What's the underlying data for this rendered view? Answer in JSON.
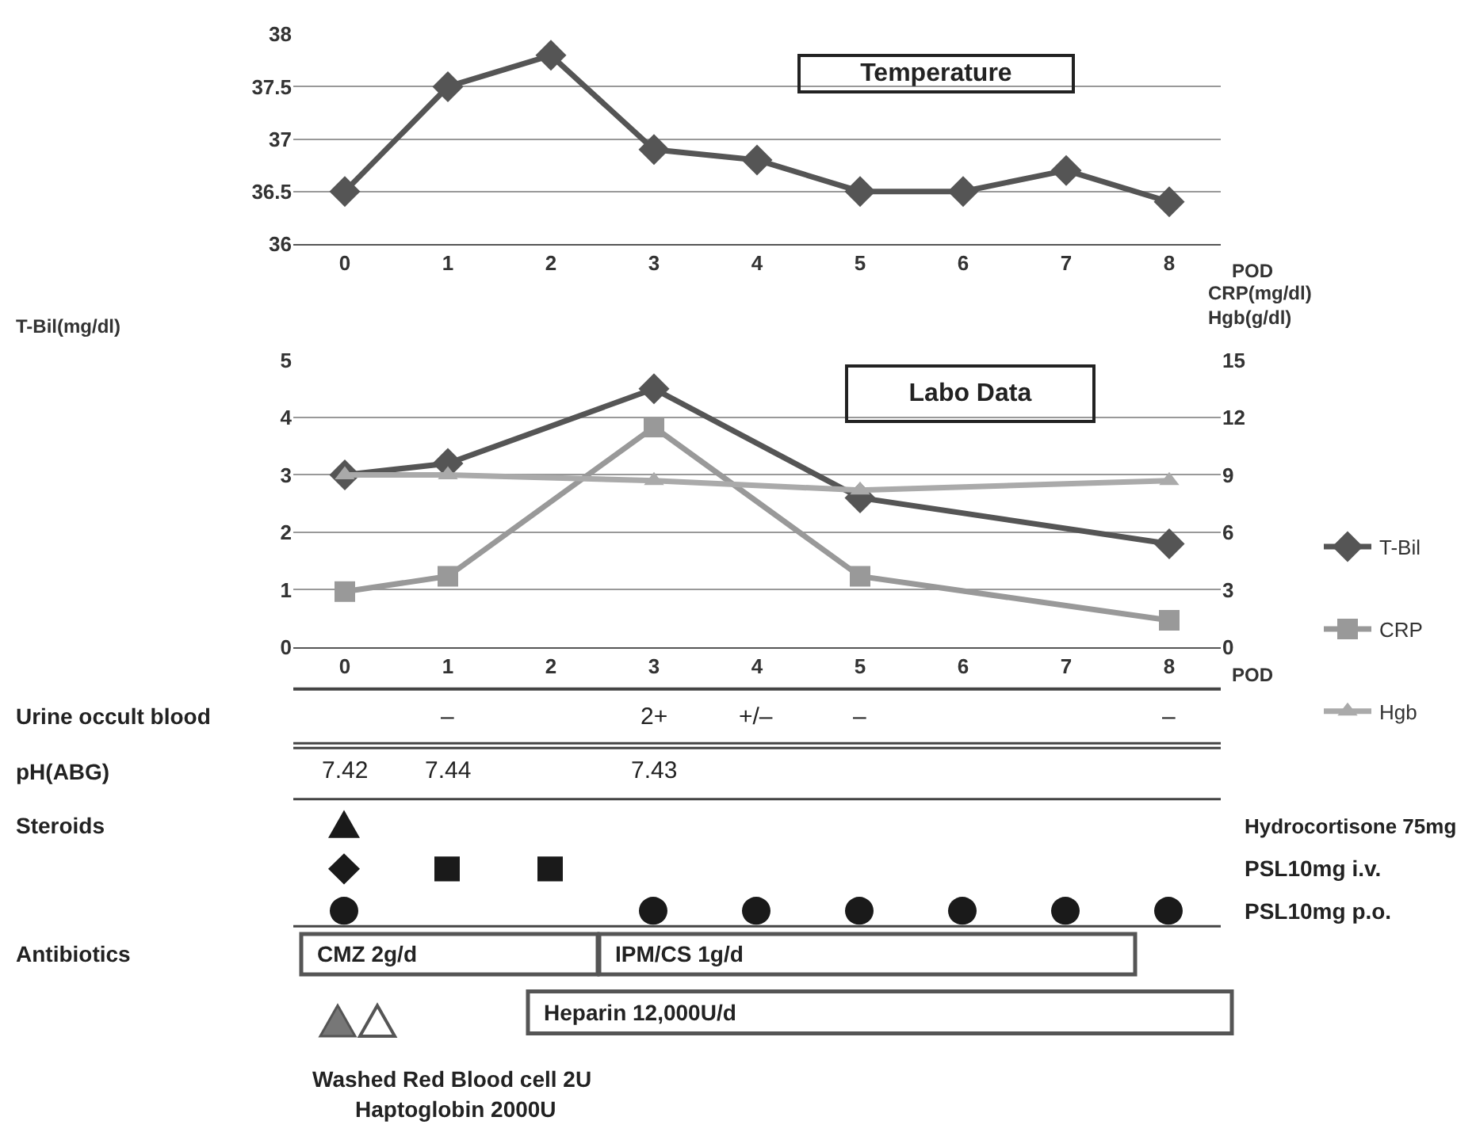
{
  "chart_data": [
    {
      "type": "line",
      "annotations": [
        "Temperature"
      ],
      "xlabel": "POD",
      "categories": [
        "0",
        "1",
        "2",
        "3",
        "4",
        "5",
        "6",
        "7",
        "8"
      ],
      "marker": "diamond",
      "grid": "y",
      "ylim": [
        36,
        38
      ],
      "yticks": [
        36,
        36.5,
        37,
        37.5,
        38
      ],
      "series": [
        {
          "color": "#555555",
          "values": [
            36.5,
            37.5,
            37.8,
            36.9,
            36.8,
            36.5,
            36.5,
            36.7,
            36.4
          ]
        }
      ]
    },
    {
      "type": "line",
      "annotations": [
        "Labo Data"
      ],
      "xlabel": "POD",
      "ylabel": "T-Bil(mg/dl)",
      "y2label": "CRP(mg/dl)\nHgb(g/dl)",
      "categories": [
        "0",
        "1",
        "2",
        "3",
        "4",
        "5",
        "6",
        "7",
        "8"
      ],
      "grid": "y",
      "legend": "right",
      "ylim": [
        0,
        5
      ],
      "yticks": [
        0,
        1,
        2,
        3,
        4,
        5
      ],
      "y2lim": [
        0,
        15
      ],
      "y2ticks": [
        0,
        3,
        6,
        9,
        12,
        15
      ],
      "series": [
        {
          "name": "T-Bil",
          "color": "#555555",
          "marker": "diamond",
          "x": [
            "0",
            "1",
            "3",
            "5",
            "8"
          ],
          "values": [
            3.0,
            3.2,
            4.5,
            2.6,
            1.8
          ]
        },
        {
          "name": "CRP",
          "color": "#999999",
          "marker": "square",
          "axis": "y2",
          "x": [
            "0",
            "1",
            "3",
            "5",
            "8"
          ],
          "values": [
            2.9,
            3.7,
            11.5,
            3.7,
            1.4
          ]
        },
        {
          "name": "Hgb",
          "color": "#aaaaaa",
          "marker": "triangle",
          "axis": "y2",
          "x": [
            "0",
            "1",
            "3",
            "5",
            "8"
          ],
          "values": [
            9,
            9,
            8.7,
            8.2,
            8.7
          ]
        }
      ]
    },
    {
      "type": "other",
      "annotations": [
        "Urine occult blood",
        "–",
        "2+",
        "+/–",
        "–",
        "–",
        "pH(ABG)",
        "7.42",
        "7.44",
        "7.43",
        "Steroids",
        "Hydrocortisone 75mg",
        "PSL10mg i.v.",
        "PSL10mg p.o.",
        "Antibiotics",
        "CMZ 2g/d",
        "IPM/CS 1g/d",
        "Heparin 12,000U/d",
        "Washed Red Blood cell 2U",
        "Haptoglobin 2000U"
      ]
    }
  ]
}
